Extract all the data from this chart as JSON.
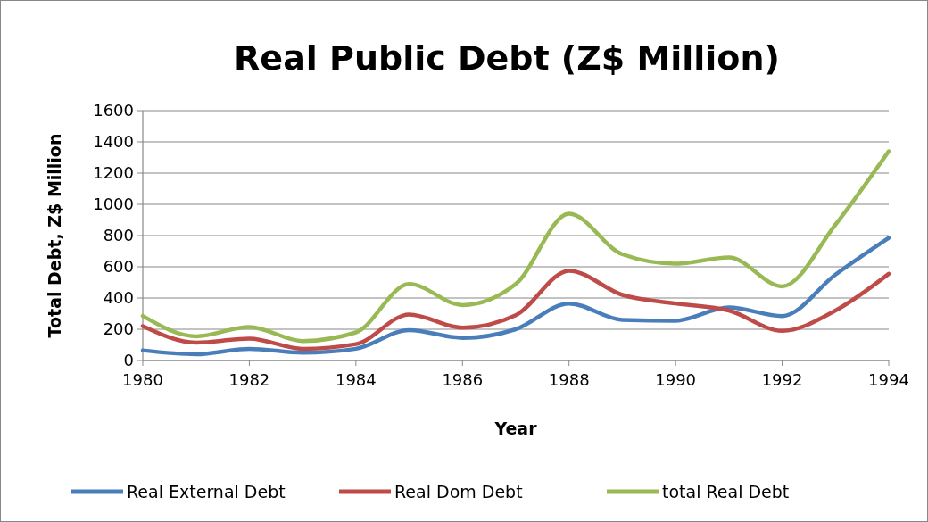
{
  "chart_data": {
    "type": "line",
    "title": "Real Public Debt (Z$ Million)",
    "xlabel": "Year",
    "ylabel": "Total Debt, Z$ Million",
    "x": [
      1980,
      1981,
      1982,
      1983,
      1984,
      1985,
      1986,
      1987,
      1988,
      1989,
      1990,
      1991,
      1992,
      1993,
      1994
    ],
    "xlim": [
      1980,
      1994
    ],
    "xticks": [
      1980,
      1982,
      1984,
      1986,
      1988,
      1990,
      1992,
      1994
    ],
    "ylim": [
      0,
      1600
    ],
    "yticks": [
      0,
      200,
      400,
      600,
      800,
      1000,
      1200,
      1400,
      1600
    ],
    "grid": "y",
    "legend": "bottom",
    "marker": "none",
    "line_style": "solid",
    "series": [
      {
        "name": "Real External Debt",
        "color": "#4a7ebb",
        "values": [
          65,
          40,
          75,
          50,
          75,
          195,
          145,
          200,
          365,
          260,
          255,
          340,
          285,
          550,
          785
        ]
      },
      {
        "name": "Real Dom Debt",
        "color": "#be4b48",
        "values": [
          220,
          115,
          140,
          75,
          105,
          295,
          210,
          290,
          575,
          420,
          365,
          320,
          190,
          320,
          555
        ]
      },
      {
        "name": "total Real Debt",
        "color": "#98b954",
        "values": [
          285,
          155,
          215,
          125,
          180,
          490,
          355,
          490,
          940,
          680,
          620,
          660,
          475,
          870,
          1340
        ]
      }
    ]
  }
}
